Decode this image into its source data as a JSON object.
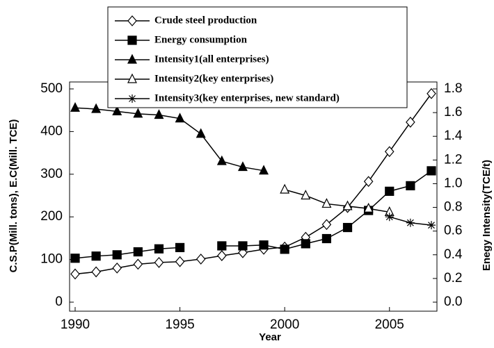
{
  "chart_data": {
    "type": "line",
    "x": [
      1990,
      1991,
      1992,
      1993,
      1994,
      1995,
      1996,
      1997,
      1998,
      1999,
      2000,
      2001,
      2002,
      2003,
      2004,
      2005,
      2006,
      2007
    ],
    "xlim": [
      1990,
      2007
    ],
    "xticks": [
      1990,
      1995,
      2000,
      2005
    ],
    "xlabel": "Year",
    "ylabel": "C.S.P(Mill. tons), E.C(Mill. TCE)",
    "y2label": "Enegy Intensity(TCE/t)",
    "ylim": [
      0,
      500
    ],
    "yticks": [
      0,
      100,
      200,
      300,
      400,
      500
    ],
    "y2lim": [
      0,
      1.8
    ],
    "y2ticks": [
      {
        "value": 0,
        "label": "0.0"
      },
      0.2,
      0.4,
      0.6,
      0.8,
      {
        "value": 1,
        "label": "1.0"
      },
      1.2,
      1.4,
      1.6,
      1.8
    ],
    "series": [
      {
        "name": "Crude steel production",
        "color": "#000000",
        "marker": "diamond",
        "values": [
          66,
          71,
          80,
          89,
          93,
          95,
          101,
          109,
          116,
          124,
          129,
          152,
          182,
          222,
          283,
          353,
          422,
          489
        ]
      },
      {
        "name": "Energy consumption",
        "color": "#000000",
        "marker": "square",
        "values": [
          103,
          108,
          111,
          118,
          125,
          128,
          null,
          132,
          132,
          134,
          124,
          137,
          149,
          175,
          215,
          260,
          273,
          308
        ]
      },
      {
        "name": "Intensity1(all enterprises)",
        "color": "#000000",
        "marker": "triangle",
        "axis": "y2",
        "values": [
          1.64,
          1.63,
          1.61,
          1.59,
          1.58,
          1.55,
          1.42,
          1.19,
          1.14,
          1.11,
          null,
          null,
          null,
          null,
          null,
          null,
          null,
          null
        ]
      },
      {
        "name": "Intensity2(key enterprises)",
        "color": "#000000",
        "marker": "triangle-open",
        "axis": "y2",
        "values": [
          null,
          null,
          null,
          null,
          null,
          null,
          null,
          null,
          null,
          null,
          0.95,
          0.9,
          0.83,
          0.81,
          0.79,
          0.76,
          null,
          null
        ]
      },
      {
        "name": "Intensity3(key enterprises, new standard)",
        "color": "#000000",
        "marker": "asterisk",
        "axis": "y2",
        "values": [
          null,
          null,
          null,
          null,
          null,
          null,
          null,
          null,
          null,
          null,
          null,
          null,
          null,
          null,
          null,
          0.72,
          0.67,
          0.65
        ]
      }
    ]
  }
}
